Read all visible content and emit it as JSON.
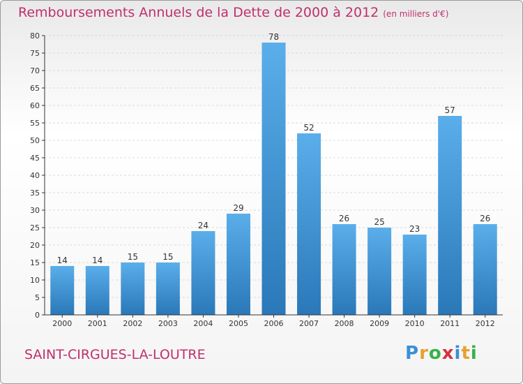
{
  "header": {
    "title": "Remboursements Annuels de la Dette de 2000 à 2012",
    "unit": "(en milliers d'€)"
  },
  "footer": {
    "commune": "SAINT-CIRGUES-LA-LOUTRE",
    "logo_letters": [
      "P",
      "r",
      "o",
      "x",
      "i",
      "t",
      "i"
    ],
    "logo_colors": [
      "#3a8fd8",
      "#e8a030",
      "#3ab04a",
      "#d83040",
      "#3a8fd8",
      "#e8a030",
      "#3ab04a"
    ]
  },
  "colors": {
    "bar_top": "#5aaeea",
    "bar_bottom": "#2a78b8",
    "axis": "#333333",
    "grid": "#d9d9d9",
    "accent": "#c0306a"
  },
  "chart_data": {
    "type": "bar",
    "categories": [
      "2000",
      "2001",
      "2002",
      "2003",
      "2004",
      "2005",
      "2006",
      "2007",
      "2008",
      "2009",
      "2010",
      "2011",
      "2012"
    ],
    "values": [
      14,
      14,
      15,
      15,
      24,
      29,
      78,
      52,
      26,
      25,
      23,
      57,
      26
    ],
    "data_labels": [
      "14",
      "14",
      "15",
      "15",
      "24",
      "29",
      "78",
      "52",
      "26",
      "25",
      "23",
      "57",
      "26"
    ],
    "ylim": [
      0,
      80
    ],
    "yticks": [
      0,
      5,
      10,
      15,
      20,
      25,
      30,
      35,
      40,
      45,
      50,
      55,
      60,
      65,
      70,
      75,
      80
    ],
    "grid": "horizontal, dashed",
    "xlabel": "",
    "ylabel": ""
  }
}
